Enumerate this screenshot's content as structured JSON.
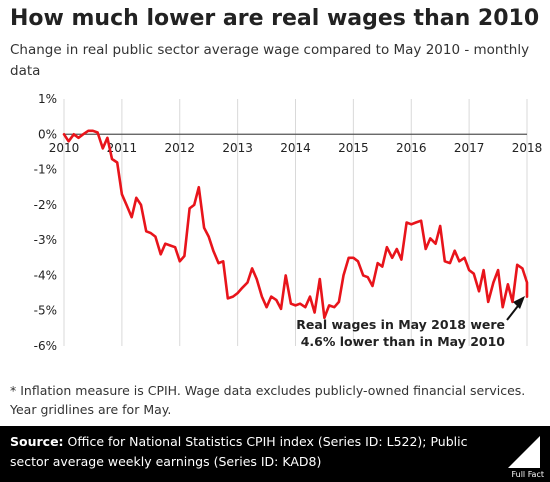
{
  "title": "How much lower are real wages than 2010",
  "subtitle": "Change in real public sector average wage compared to May 2010 - monthly data",
  "footnote": "* Inflation measure is CPIH. Wage data excludes publicly-owned financial services. Year gridlines are for May.",
  "source": {
    "label": "Source:",
    "text": " Office for National Statistics CPIH index (Series ID: L522); Public sector average weekly earnings (Series ID: KAD8)"
  },
  "brand": "Full Fact",
  "annotation": {
    "line1": "Real wages in May 2018 were",
    "line2": "4.6% lower than in May 2010"
  },
  "colors": {
    "series": "#e8141b",
    "background": "#ffffff",
    "source_bar": "#000000",
    "grid": "#d9d9d9"
  },
  "chart_data": {
    "type": "line",
    "title": "How much lower are real wages than 2010",
    "xlabel": "",
    "ylabel": "",
    "x_ticks": [
      "2010",
      "2011",
      "2012",
      "2013",
      "2014",
      "2015",
      "2016",
      "2017",
      "2018"
    ],
    "y_ticks": [
      "1%",
      "0%",
      "-1%",
      "-2%",
      "-3%",
      "-4%",
      "-5%",
      "-6%"
    ],
    "y_tick_values": [
      1,
      0,
      -1,
      -2,
      -3,
      -4,
      -5,
      -6
    ],
    "ylim": [
      -6,
      1
    ],
    "xlim": [
      2010,
      2018
    ],
    "grid": "vertical lines at each May",
    "series": [
      {
        "values": [
          [
            2010.0,
            0.0
          ],
          [
            2010.08,
            -0.2
          ],
          [
            2010.17,
            0.0
          ],
          [
            2010.25,
            -0.1
          ],
          [
            2010.33,
            0.0
          ],
          [
            2010.42,
            0.1
          ],
          [
            2010.5,
            0.1
          ],
          [
            2010.58,
            0.05
          ],
          [
            2010.67,
            -0.4
          ],
          [
            2010.75,
            -0.1
          ],
          [
            2010.83,
            -0.7
          ],
          [
            2010.92,
            -0.8
          ],
          [
            2011.0,
            -1.7
          ],
          [
            2011.08,
            -2.0
          ],
          [
            2011.17,
            -2.35
          ],
          [
            2011.25,
            -1.8
          ],
          [
            2011.33,
            -2.0
          ],
          [
            2011.42,
            -2.75
          ],
          [
            2011.5,
            -2.8
          ],
          [
            2011.58,
            -2.9
          ],
          [
            2011.67,
            -3.4
          ],
          [
            2011.75,
            -3.1
          ],
          [
            2011.83,
            -3.15
          ],
          [
            2011.92,
            -3.2
          ],
          [
            2012.0,
            -3.6
          ],
          [
            2012.08,
            -3.45
          ],
          [
            2012.17,
            -2.1
          ],
          [
            2012.25,
            -2.0
          ],
          [
            2012.33,
            -1.5
          ],
          [
            2012.42,
            -2.65
          ],
          [
            2012.5,
            -2.9
          ],
          [
            2012.58,
            -3.3
          ],
          [
            2012.67,
            -3.65
          ],
          [
            2012.75,
            -3.6
          ],
          [
            2012.83,
            -4.65
          ],
          [
            2012.92,
            -4.6
          ],
          [
            2013.0,
            -4.5
          ],
          [
            2013.08,
            -4.35
          ],
          [
            2013.17,
            -4.2
          ],
          [
            2013.25,
            -3.8
          ],
          [
            2013.33,
            -4.1
          ],
          [
            2013.42,
            -4.6
          ],
          [
            2013.5,
            -4.9
          ],
          [
            2013.58,
            -4.6
          ],
          [
            2013.67,
            -4.7
          ],
          [
            2013.75,
            -4.95
          ],
          [
            2013.83,
            -4.0
          ],
          [
            2013.92,
            -4.8
          ],
          [
            2014.0,
            -4.85
          ],
          [
            2014.08,
            -4.8
          ],
          [
            2014.17,
            -4.9
          ],
          [
            2014.25,
            -4.6
          ],
          [
            2014.33,
            -5.05
          ],
          [
            2014.42,
            -4.1
          ],
          [
            2014.5,
            -5.2
          ],
          [
            2014.58,
            -4.85
          ],
          [
            2014.67,
            -4.9
          ],
          [
            2014.75,
            -4.75
          ],
          [
            2014.83,
            -4.0
          ],
          [
            2014.92,
            -3.5
          ],
          [
            2015.0,
            -3.5
          ],
          [
            2015.08,
            -3.6
          ],
          [
            2015.17,
            -4.0
          ],
          [
            2015.25,
            -4.05
          ],
          [
            2015.33,
            -4.3
          ],
          [
            2015.42,
            -3.65
          ],
          [
            2015.5,
            -3.75
          ],
          [
            2015.58,
            -3.2
          ],
          [
            2015.67,
            -3.5
          ],
          [
            2015.75,
            -3.25
          ],
          [
            2015.83,
            -3.55
          ],
          [
            2015.92,
            -2.5
          ],
          [
            2016.0,
            -2.55
          ],
          [
            2016.08,
            -2.5
          ],
          [
            2016.17,
            -2.45
          ],
          [
            2016.25,
            -3.25
          ],
          [
            2016.33,
            -2.95
          ],
          [
            2016.42,
            -3.1
          ],
          [
            2016.5,
            -2.6
          ],
          [
            2016.58,
            -3.6
          ],
          [
            2016.67,
            -3.65
          ],
          [
            2016.75,
            -3.3
          ],
          [
            2016.83,
            -3.6
          ],
          [
            2016.92,
            -3.5
          ],
          [
            2017.0,
            -3.85
          ],
          [
            2017.08,
            -3.95
          ],
          [
            2017.17,
            -4.45
          ],
          [
            2017.25,
            -3.85
          ],
          [
            2017.33,
            -4.75
          ],
          [
            2017.42,
            -4.2
          ],
          [
            2017.5,
            -3.85
          ],
          [
            2017.58,
            -4.9
          ],
          [
            2017.67,
            -4.25
          ],
          [
            2017.75,
            -4.75
          ],
          [
            2017.83,
            -3.7
          ],
          [
            2017.92,
            -3.8
          ],
          [
            2018.0,
            -4.2
          ],
          [
            2018.0,
            -4.6
          ]
        ]
      }
    ]
  }
}
